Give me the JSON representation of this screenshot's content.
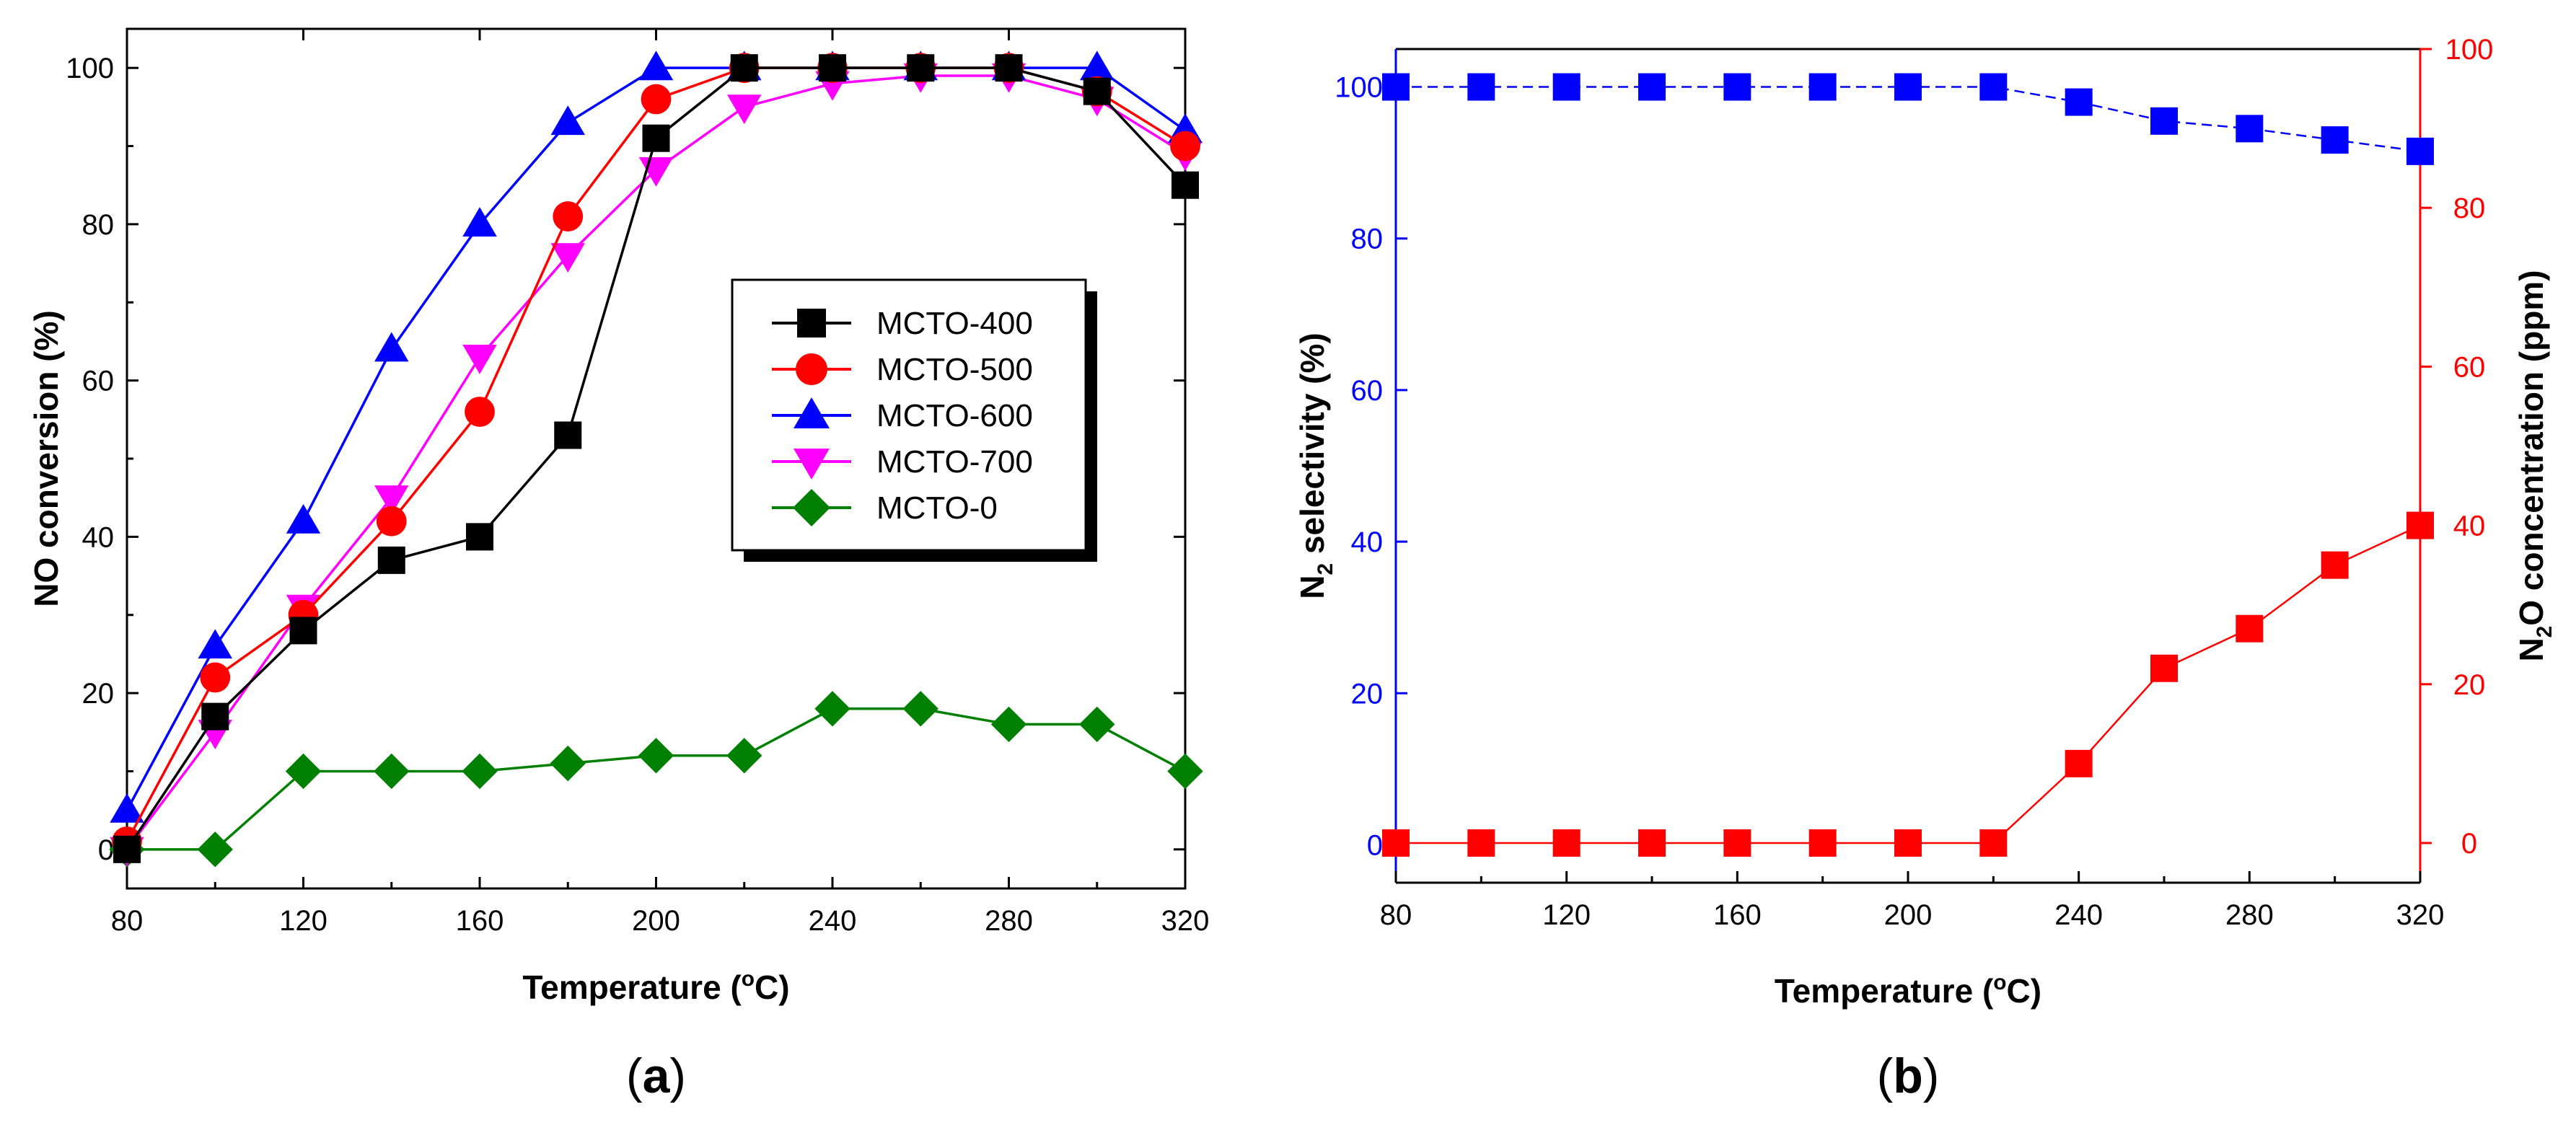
{
  "chart_data": [
    {
      "type": "line",
      "panel_label": "a",
      "xlabel": "Temperature (°C)",
      "ylabel": "NO conversion (%)",
      "xlim": [
        80,
        320
      ],
      "ylim": [
        -5,
        105
      ],
      "x_ticks": [
        80,
        120,
        160,
        200,
        240,
        280,
        320
      ],
      "y_ticks": [
        0,
        20,
        40,
        60,
        80,
        100
      ],
      "x": [
        80,
        100,
        120,
        140,
        160,
        180,
        200,
        220,
        240,
        260,
        280,
        300,
        320
      ],
      "legend_position": "center-right",
      "series": [
        {
          "name": "MCTO-400",
          "color": "#000000",
          "marker": "square",
          "values": [
            0,
            17,
            28,
            37,
            40,
            53,
            91,
            100,
            100,
            100,
            100,
            97,
            85
          ]
        },
        {
          "name": "MCTO-500",
          "color": "#ff0000",
          "marker": "circle",
          "values": [
            1,
            22,
            30,
            42,
            56,
            81,
            96,
            100,
            100,
            100,
            100,
            97,
            90
          ]
        },
        {
          "name": "MCTO-600",
          "color": "#0000ff",
          "marker": "triangle-up",
          "values": [
            5,
            26,
            42,
            64,
            80,
            93,
            100,
            100,
            100,
            100,
            100,
            100,
            92
          ]
        },
        {
          "name": "MCTO-700",
          "color": "#ff00ff",
          "marker": "triangle-down",
          "values": [
            0,
            15,
            31,
            45,
            63,
            76,
            87,
            95,
            98,
            99,
            99,
            96,
            89
          ]
        },
        {
          "name": "MCTO-0",
          "color": "#008000",
          "marker": "diamond",
          "values": [
            0,
            0,
            10,
            10,
            10,
            11,
            12,
            12,
            18,
            18,
            16,
            16,
            10
          ]
        }
      ]
    },
    {
      "type": "line",
      "panel_label": "b",
      "xlabel": "Temperature (°C)",
      "ylabel_left": "N2 selectivity (%)",
      "ylabel_right": "N2O concentration (ppm)",
      "xlim": [
        80,
        320
      ],
      "ylim_left": [
        -5,
        105
      ],
      "ylim_right": [
        -5,
        100
      ],
      "x_ticks": [
        80,
        120,
        160,
        200,
        240,
        280,
        320
      ],
      "y_ticks_left": [
        0,
        20,
        40,
        60,
        80,
        100
      ],
      "y_ticks_right": [
        0,
        20,
        40,
        60,
        80,
        100
      ],
      "x": [
        80,
        100,
        120,
        140,
        160,
        180,
        200,
        220,
        240,
        260,
        280,
        300,
        320
      ],
      "series": [
        {
          "name": "N2 selectivity",
          "axis": "left",
          "color": "#0000ff",
          "marker": "square",
          "line_style": "dashed",
          "values": [
            100,
            100,
            100,
            100,
            100,
            100,
            100,
            100,
            98,
            95.5,
            94.5,
            93,
            91.5
          ]
        },
        {
          "name": "N2O concentration",
          "axis": "right",
          "color": "#ff0000",
          "marker": "square",
          "line_style": "solid",
          "values": [
            0,
            0,
            0,
            0,
            0,
            0,
            0,
            0,
            10,
            22,
            27,
            35,
            40
          ]
        }
      ]
    }
  ]
}
